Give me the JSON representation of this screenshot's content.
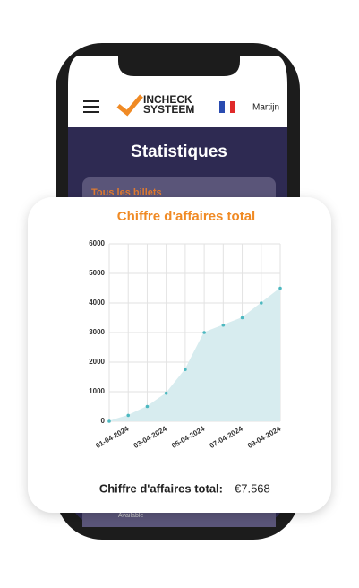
{
  "header": {
    "brand_line1": "INCHECK",
    "brand_line2": "SYSTEEM",
    "user": "Martijn"
  },
  "page_title": "Statistiques",
  "panel_title": "Tous les billets",
  "panel_footer": "Available",
  "summary": {
    "label": "Chiffre d'affaires total:",
    "value": "€7.568"
  },
  "chart_data": {
    "type": "area",
    "title": "Chiffre d'affaires total",
    "categories": [
      null,
      "01-04-2024",
      null,
      "03-04-2024",
      null,
      "05-04-2024",
      null,
      "07-04-2024",
      null,
      "09-04-2024"
    ],
    "series": [
      {
        "color": "#4cb8c0",
        "values": [
          0,
          200,
          500,
          950,
          1750,
          3000,
          3250,
          3500,
          4000,
          4500
        ]
      }
    ],
    "ylim": [
      0,
      6000
    ],
    "yticks": [
      0,
      1000,
      2000,
      3000,
      4000,
      5000,
      6000
    ],
    "grid": true
  }
}
